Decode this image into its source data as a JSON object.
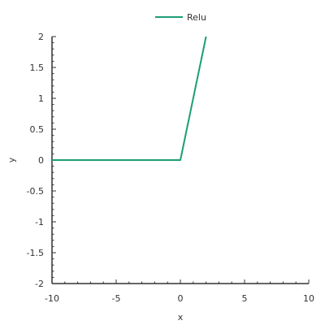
{
  "chart_data": {
    "type": "line",
    "title": "",
    "xlabel": "x",
    "ylabel": "y",
    "xlim": [
      -10,
      10
    ],
    "ylim": [
      -2,
      2
    ],
    "grid": false,
    "legend_position": "top-center",
    "x_ticks": [
      -10,
      -5,
      0,
      5,
      10
    ],
    "x_tick_labels": [
      "-10",
      "-5",
      "0",
      "5",
      "10"
    ],
    "y_ticks": [
      -2,
      -1.5,
      -1,
      -0.5,
      0,
      0.5,
      1,
      1.5,
      2
    ],
    "y_tick_labels": [
      "-2",
      "-1.5",
      "-1",
      "-0.5",
      "0",
      "0.5",
      "1",
      "1.5",
      "2"
    ],
    "series": [
      {
        "name": "Relu",
        "color": "#1b9e77",
        "x": [
          -10,
          0,
          2
        ],
        "y": [
          0,
          0,
          2
        ]
      }
    ]
  }
}
